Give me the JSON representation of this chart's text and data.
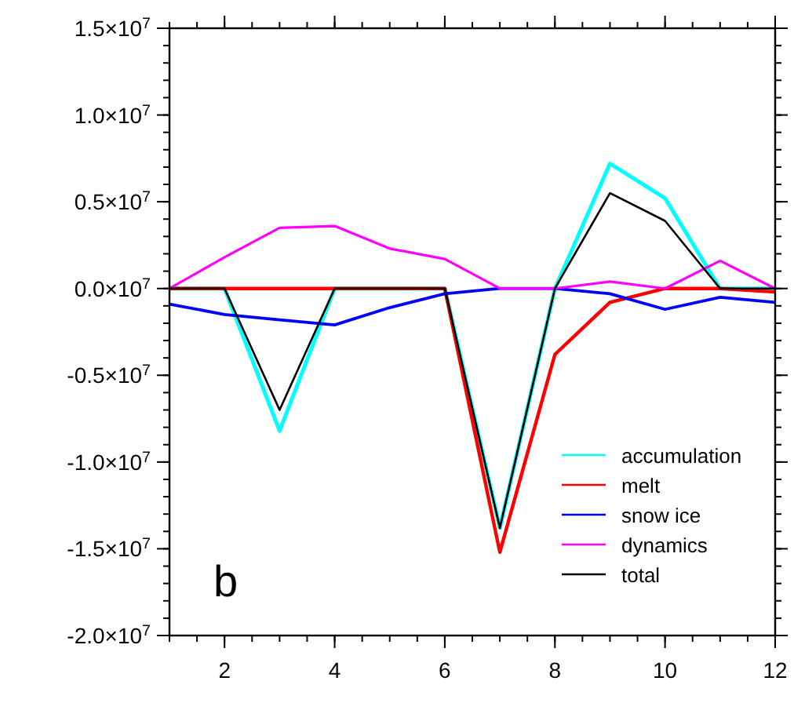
{
  "chart_data": {
    "type": "line",
    "x": [
      1,
      2,
      3,
      4,
      5,
      6,
      7,
      8,
      9,
      10,
      11,
      12
    ],
    "xlim": [
      1,
      12
    ],
    "xticks": [
      2,
      4,
      6,
      8,
      10,
      12
    ],
    "ylim": [
      -20000000,
      15000000
    ],
    "yticks": [
      {
        "value": -20000000,
        "label": "-2.0×10$^{7}$"
      },
      {
        "value": -15000000,
        "label": "-1.5×10$^{7}$"
      },
      {
        "value": -10000000,
        "label": "-1.0×10$^{7}$"
      },
      {
        "value": -5000000,
        "label": "-0.5×10$^{7}$"
      },
      {
        "value": 0,
        "label": "0.0×10$^{7}$"
      },
      {
        "value": 5000000,
        "label": "0.5×10$^{7}$"
      },
      {
        "value": 10000000,
        "label": "1.0×10$^{7}$"
      },
      {
        "value": 15000000,
        "label": "1.5×10$^{7}$"
      }
    ],
    "series": [
      {
        "name": "accumulation",
        "color": "#00ffff",
        "values": [
          0,
          0,
          -8200000,
          0,
          0,
          0,
          -13800000,
          0,
          7200000,
          5200000,
          0,
          0
        ]
      },
      {
        "name": "melt",
        "color": "#ff0000",
        "values": [
          0,
          0,
          0,
          0,
          0,
          0,
          -15200000,
          -3800000,
          -800000,
          0,
          0,
          -200000
        ]
      },
      {
        "name": "snow ice",
        "color": "#0000ff",
        "values": [
          -900000,
          -1500000,
          -1800000,
          -2100000,
          -1100000,
          -300000,
          0,
          0,
          -300000,
          -1200000,
          -500000,
          -800000
        ]
      },
      {
        "name": "dynamics",
        "color": "#ff00ff",
        "values": [
          0,
          1800000,
          3500000,
          3600000,
          2300000,
          1700000,
          0,
          0,
          400000,
          0,
          1600000,
          0
        ]
      },
      {
        "name": "total",
        "color": "#000000",
        "values": [
          0,
          0,
          -7000000,
          0,
          0,
          0,
          -13800000,
          0,
          5500000,
          3900000,
          0,
          0
        ]
      }
    ],
    "legend": "bottom right",
    "grid": false,
    "marker": "none",
    "line_style": "solid",
    "annotations": [
      "b"
    ]
  }
}
